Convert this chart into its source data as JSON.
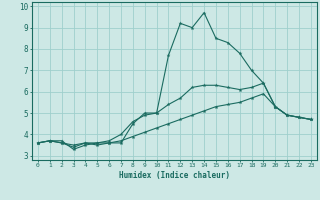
{
  "xlabel": "Humidex (Indice chaleur)",
  "ylabel": "",
  "background_color": "#cde8e5",
  "grid_color": "#9fcfcc",
  "line_color": "#1a6b60",
  "xlim": [
    -0.5,
    23.5
  ],
  "ylim": [
    2.8,
    10.2
  ],
  "yticks": [
    3,
    4,
    5,
    6,
    7,
    8,
    9,
    10
  ],
  "xticks": [
    0,
    1,
    2,
    3,
    4,
    5,
    6,
    7,
    8,
    9,
    10,
    11,
    12,
    13,
    14,
    15,
    16,
    17,
    18,
    19,
    20,
    21,
    22,
    23
  ],
  "x": [
    0,
    1,
    2,
    3,
    4,
    5,
    6,
    7,
    8,
    9,
    10,
    11,
    12,
    13,
    14,
    15,
    16,
    17,
    18,
    19,
    20,
    21,
    22,
    23
  ],
  "line1": [
    3.6,
    3.7,
    3.7,
    3.3,
    3.5,
    3.6,
    3.6,
    3.6,
    4.5,
    5.0,
    5.0,
    7.7,
    9.2,
    9.0,
    9.7,
    8.5,
    8.3,
    7.8,
    7.0,
    6.4,
    5.3,
    4.9,
    4.8,
    4.7
  ],
  "line2": [
    3.6,
    3.7,
    3.6,
    3.5,
    3.6,
    3.6,
    3.7,
    4.0,
    4.6,
    4.9,
    5.0,
    5.4,
    5.7,
    6.2,
    6.3,
    6.3,
    6.2,
    6.1,
    6.2,
    6.4,
    5.3,
    4.9,
    4.8,
    4.7
  ],
  "line3": [
    3.6,
    3.7,
    3.6,
    3.4,
    3.6,
    3.5,
    3.6,
    3.7,
    3.9,
    4.1,
    4.3,
    4.5,
    4.7,
    4.9,
    5.1,
    5.3,
    5.4,
    5.5,
    5.7,
    5.9,
    5.3,
    4.9,
    4.8,
    4.7
  ]
}
